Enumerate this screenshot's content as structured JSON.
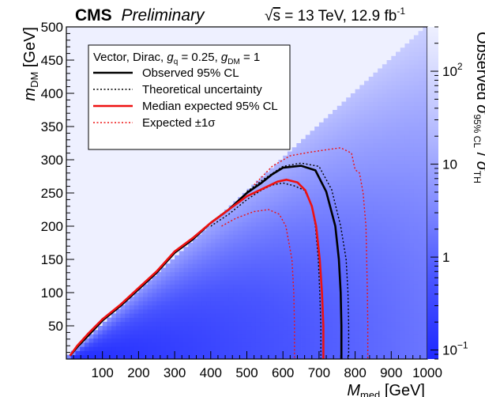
{
  "header": {
    "experiment": "CMS",
    "status": "Preliminary",
    "energy_prefix": "s",
    "energy_rest": " = 13 TeV, 12.9 fb",
    "lumi_exp": "-1"
  },
  "chart_data": {
    "type": "heatmap",
    "xlabel": {
      "main": "M",
      "sub": "med",
      "unit": " [GeV]"
    },
    "ylabel": {
      "main": "m",
      "sub": "DM",
      "unit": " [GeV]"
    },
    "zlabel": {
      "pre": "Observed ",
      "sig": "σ",
      "sig_sub": "95% CL",
      "slash": " / ",
      "sig2": "σ",
      "sig2_sub": "TH"
    },
    "xlim": [
      0,
      1000
    ],
    "ylim": [
      0,
      500
    ],
    "x_ticks": [
      "100",
      "200",
      "300",
      "400",
      "500",
      "600",
      "700",
      "800",
      "900",
      "1000"
    ],
    "y_ticks": [
      "50",
      "100",
      "150",
      "200",
      "250",
      "300",
      "350",
      "400",
      "450",
      "500"
    ],
    "z_scale": "log",
    "z_range": [
      0.08,
      300
    ],
    "z_ticks": [
      {
        "value": 0.1,
        "base": "10",
        "exp": "−1"
      },
      {
        "value": 1,
        "base": "1",
        "exp": ""
      },
      {
        "value": 10,
        "base": "10",
        "exp": ""
      },
      {
        "value": 100,
        "base": "10",
        "exp": "2"
      }
    ],
    "colormap": [
      "#1f29ff",
      "#4a56ff",
      "#8b94ff",
      "#c2c7ff",
      "#eef0ff"
    ],
    "legend": {
      "placement": "top-left",
      "header": {
        "pre": "Vector, Dirac, ",
        "gq": "g",
        "gq_sub": "q",
        "mid": " = 0.25, ",
        "gdm": "g",
        "gdm_sub": "DM",
        "end": " = 1"
      },
      "entries": [
        {
          "label": "Observed 95% CL",
          "color": "#000000",
          "dashed": false,
          "width": 2.6
        },
        {
          "label": "Theoretical uncertainty",
          "color": "#000000",
          "dashed": true,
          "width": 1.4
        },
        {
          "label": "Median expected 95% CL",
          "color": "#ee1111",
          "dashed": false,
          "width": 2.6
        },
        {
          "label": "Expected ±1σ",
          "color": "#ee1111",
          "dashed": true,
          "width": 1.4
        }
      ]
    },
    "series": [
      {
        "name": "Observed 95% CL",
        "color": "#000000",
        "dashed": false,
        "width": 2.6,
        "points": [
          [
            10,
            5
          ],
          [
            30,
            18
          ],
          [
            60,
            35
          ],
          [
            100,
            58
          ],
          [
            150,
            80
          ],
          [
            200,
            105
          ],
          [
            250,
            130
          ],
          [
            300,
            160
          ],
          [
            350,
            180
          ],
          [
            400,
            205
          ],
          [
            450,
            225
          ],
          [
            500,
            250
          ],
          [
            540,
            265
          ],
          [
            570,
            278
          ],
          [
            600,
            288
          ],
          [
            650,
            291
          ],
          [
            690,
            284
          ],
          [
            720,
            252
          ],
          [
            745,
            200
          ],
          [
            755,
            150
          ],
          [
            760,
            100
          ],
          [
            762,
            50
          ],
          [
            762,
            0
          ]
        ]
      },
      {
        "name": "Observed −1σ theory",
        "color": "#000000",
        "dashed": true,
        "width": 1.4,
        "points": [
          [
            400,
            200
          ],
          [
            450,
            218
          ],
          [
            500,
            240
          ],
          [
            540,
            254
          ],
          [
            570,
            262
          ],
          [
            600,
            265
          ],
          [
            630,
            261
          ],
          [
            660,
            254
          ],
          [
            680,
            230
          ],
          [
            690,
            200
          ],
          [
            698,
            150
          ],
          [
            702,
            100
          ],
          [
            705,
            50
          ],
          [
            705,
            0
          ]
        ]
      },
      {
        "name": "Observed +1σ theory",
        "color": "#000000",
        "dashed": true,
        "width": 1.4,
        "points": [
          [
            500,
            252
          ],
          [
            550,
            272
          ],
          [
            600,
            290
          ],
          [
            650,
            295
          ],
          [
            700,
            290
          ],
          [
            735,
            255
          ],
          [
            760,
            200
          ],
          [
            775,
            150
          ],
          [
            780,
            100
          ],
          [
            782,
            50
          ],
          [
            782,
            0
          ]
        ]
      },
      {
        "name": "Median expected 95% CL",
        "color": "#ee1111",
        "dashed": false,
        "width": 2.6,
        "points": [
          [
            10,
            5
          ],
          [
            30,
            20
          ],
          [
            60,
            38
          ],
          [
            100,
            60
          ],
          [
            150,
            82
          ],
          [
            200,
            107
          ],
          [
            250,
            132
          ],
          [
            300,
            162
          ],
          [
            350,
            182
          ],
          [
            400,
            205
          ],
          [
            450,
            225
          ],
          [
            500,
            245
          ],
          [
            550,
            258
          ],
          [
            585,
            267
          ],
          [
            610,
            270
          ],
          [
            640,
            266
          ],
          [
            662,
            254
          ],
          [
            680,
            230
          ],
          [
            692,
            200
          ],
          [
            702,
            150
          ],
          [
            708,
            100
          ],
          [
            712,
            50
          ],
          [
            712,
            0
          ]
        ]
      },
      {
        "name": "Expected −1σ",
        "color": "#ee1111",
        "dashed": true,
        "width": 1.4,
        "points": [
          [
            430,
            200
          ],
          [
            470,
            212
          ],
          [
            520,
            222
          ],
          [
            560,
            225
          ],
          [
            590,
            218
          ],
          [
            608,
            200
          ],
          [
            625,
            150
          ],
          [
            630,
            100
          ],
          [
            632,
            50
          ],
          [
            632,
            0
          ]
        ]
      },
      {
        "name": "Expected +1σ",
        "color": "#ee1111",
        "dashed": true,
        "width": 1.4,
        "points": [
          [
            520,
            262
          ],
          [
            570,
            290
          ],
          [
            620,
            306
          ],
          [
            670,
            311
          ],
          [
            720,
            315
          ],
          [
            760,
            318
          ],
          [
            790,
            310
          ],
          [
            800,
            285
          ],
          [
            812,
            280
          ],
          [
            822,
            250
          ],
          [
            830,
            200
          ],
          [
            832,
            150
          ],
          [
            834,
            100
          ],
          [
            835,
            50
          ],
          [
            835,
            0
          ]
        ]
      }
    ]
  }
}
